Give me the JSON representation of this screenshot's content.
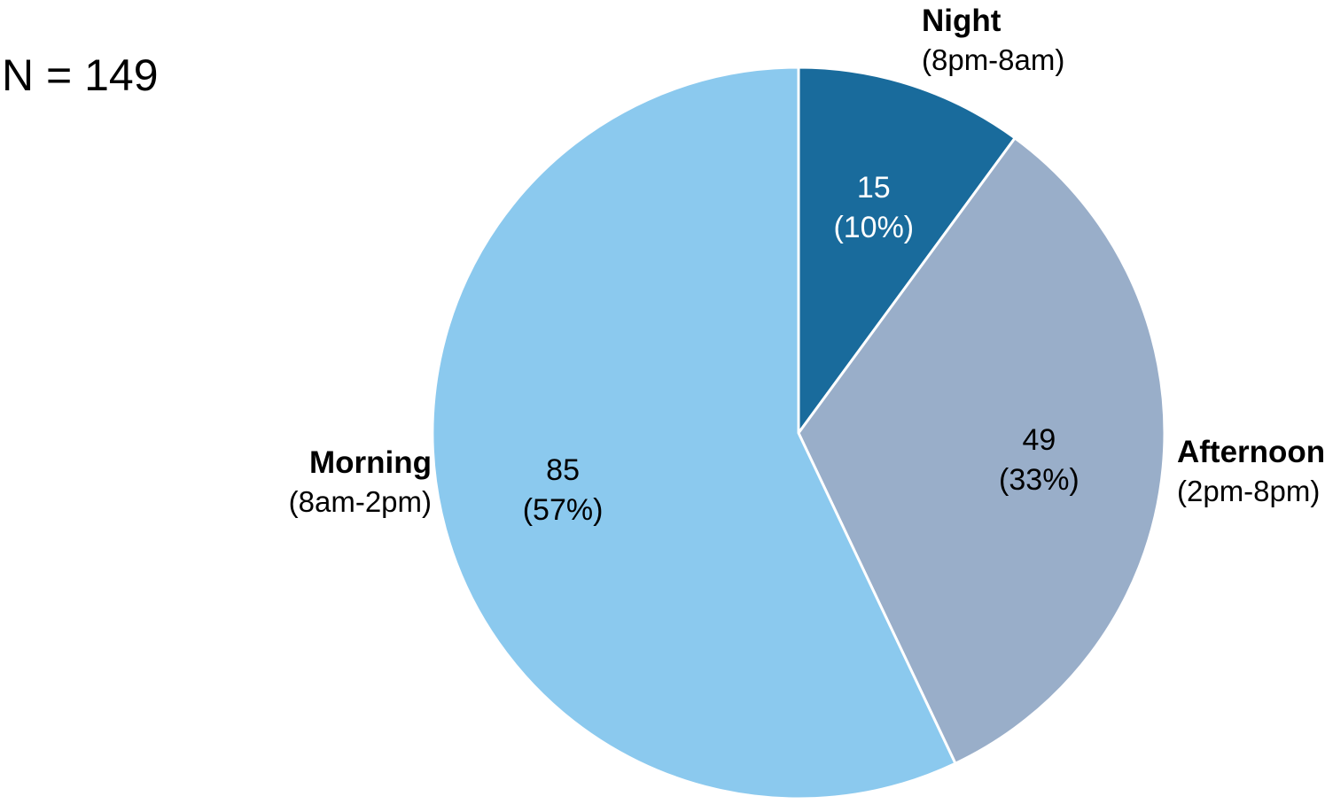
{
  "chart_data": {
    "type": "pie",
    "title": "",
    "annotation": "N = 149",
    "total": 149,
    "start": "12 o'clock",
    "direction": "clockwise",
    "legend": "none",
    "slices": [
      {
        "name": "Night",
        "sublabel": "(8pm-8am)",
        "value": 15,
        "percent_label": "(10%)",
        "color": "#196b9c",
        "value_text_color": "#ffffff"
      },
      {
        "name": "Afternoon",
        "sublabel": "(2pm-8pm)",
        "value": 49,
        "percent_label": "(33%)",
        "color": "#99aec9",
        "value_text_color": "#000000"
      },
      {
        "name": "Morning",
        "sublabel": "(8am-2pm)",
        "value": 85,
        "percent_label": "(57%)",
        "color": "#8bc9ee",
        "value_text_color": "#000000"
      }
    ]
  }
}
